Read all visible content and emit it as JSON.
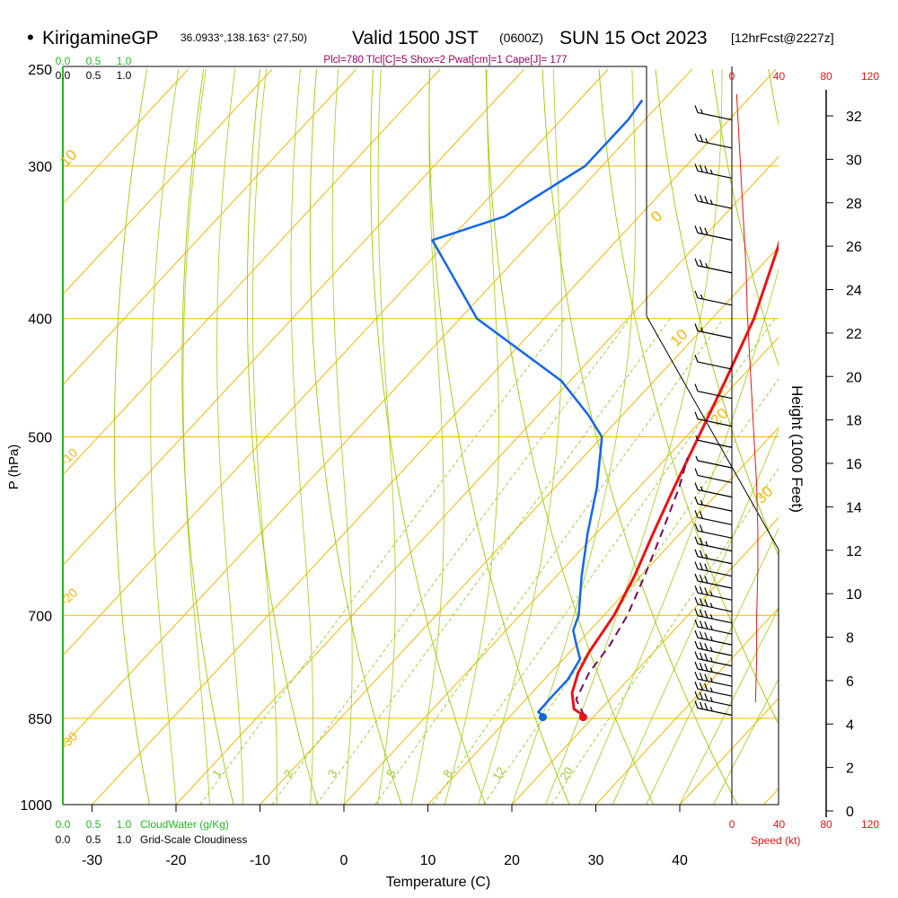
{
  "header": {
    "bullet": "•",
    "site": "KirigamineGP",
    "coords": "36.0933°,138.163° (27,50)",
    "valid": "Valid 1500 JST",
    "zulu": "(0600Z)",
    "date": "SUN 15 Oct 2023",
    "forecast": "[12hrFcst@2227z]"
  },
  "indices": "Plcl=780 Tlcl[C]=5 Shox=2 Pwat[cm]=1 Cape[J]= 177",
  "cloudwater_label": "CloudWater (g/Kg)",
  "cloudiness_label": "Grid-Scale Cloudiness",
  "speed_label": "Speed (kt)",
  "colors": {
    "temperature": "#ee1111",
    "dewpoint": "#1166ee",
    "parcel": "#7a0a5a",
    "isotherm": "#f5b800",
    "dry_adiabat": "#99cc00",
    "moist_adiabat": "#99cc00",
    "mixing_ratio": "#99cc33",
    "cloudwater": "#22bb22",
    "speed": "#ee1111",
    "indices": "#990066"
  },
  "chart_data": {
    "type": "line",
    "xlabel": "Temperature (C)",
    "ylabel": "P (hPa)",
    "y2label": "Height (1000 Feet)",
    "x_ticks": [
      -30,
      -20,
      -10,
      0,
      10,
      20,
      30,
      40
    ],
    "p_ticks": [
      250,
      300,
      400,
      500,
      700,
      850,
      1000
    ],
    "height_ticks": [
      0,
      2,
      4,
      6,
      8,
      10,
      12,
      14,
      16,
      18,
      20,
      22,
      24,
      26,
      28,
      30,
      32
    ],
    "speed_ticks": [
      0,
      40,
      80,
      120
    ],
    "cloud_ticks": [
      "0.0",
      "0.5",
      "1.0"
    ],
    "isotherm_labels": [
      {
        "text": "10",
        "t": -10
      },
      {
        "text": "0",
        "t": 0
      },
      {
        "text": "10",
        "t": 10
      },
      {
        "text": "20",
        "t": 20
      },
      {
        "text": "30",
        "t": 30
      }
    ],
    "mixing_ratio_labels": [
      "1",
      "2",
      "3",
      "5",
      "8",
      "12",
      "20"
    ],
    "left_axis_isotherm_labels": [
      "-10",
      "-20",
      "-30"
    ],
    "series": [
      {
        "name": "Temperature",
        "points": [
          {
            "p": 846,
            "t": 18.8
          },
          {
            "p": 835,
            "t": 16.8
          },
          {
            "p": 810,
            "t": 14.8
          },
          {
            "p": 780,
            "t": 13.3
          },
          {
            "p": 750,
            "t": 12.3
          },
          {
            "p": 700,
            "t": 11.2
          },
          {
            "p": 650,
            "t": 9.3
          },
          {
            "p": 600,
            "t": 6.8
          },
          {
            "p": 550,
            "t": 4.2
          },
          {
            "p": 500,
            "t": 1.5
          },
          {
            "p": 450,
            "t": -1.5
          },
          {
            "p": 400,
            "t": -5.0
          },
          {
            "p": 350,
            "t": -10.0
          },
          {
            "p": 300,
            "t": -16.5
          },
          {
            "p": 265,
            "t": -21.5
          }
        ]
      },
      {
        "name": "Dewpoint",
        "points": [
          {
            "p": 846,
            "t": 14.0
          },
          {
            "p": 840,
            "t": 12.9
          },
          {
            "p": 820,
            "t": 12.8
          },
          {
            "p": 790,
            "t": 12.8
          },
          {
            "p": 760,
            "t": 12.0
          },
          {
            "p": 740,
            "t": 10.0
          },
          {
            "p": 720,
            "t": 8.0
          },
          {
            "p": 700,
            "t": 7.0
          },
          {
            "p": 650,
            "t": 3.0
          },
          {
            "p": 600,
            "t": -1.0
          },
          {
            "p": 550,
            "t": -5.0
          },
          {
            "p": 500,
            "t": -10.0
          },
          {
            "p": 480,
            "t": -14.0
          },
          {
            "p": 450,
            "t": -21.0
          },
          {
            "p": 400,
            "t": -38.0
          },
          {
            "p": 345,
            "t": -52.0
          },
          {
            "p": 330,
            "t": -46.0
          },
          {
            "p": 300,
            "t": -42.0
          },
          {
            "p": 275,
            "t": -42.0
          },
          {
            "p": 265,
            "t": -42.5
          }
        ]
      },
      {
        "name": "Parcel",
        "points": [
          {
            "p": 846,
            "t": 18.8
          },
          {
            "p": 820,
            "t": 16.0
          },
          {
            "p": 780,
            "t": 14.6
          },
          {
            "p": 740,
            "t": 14.0
          },
          {
            "p": 700,
            "t": 12.8
          },
          {
            "p": 650,
            "t": 10.5
          },
          {
            "p": 600,
            "t": 7.8
          },
          {
            "p": 550,
            "t": 4.8
          },
          {
            "p": 520,
            "t": 2.5
          }
        ]
      }
    ],
    "surface_markers": [
      {
        "name": "Temperature",
        "p": 848,
        "t": 18.8
      },
      {
        "name": "Dewpoint",
        "p": 848,
        "t": 14.0
      }
    ],
    "height_profile_ft": [
      33,
      31,
      29,
      27,
      25,
      23,
      21,
      19,
      17,
      15,
      13,
      11,
      9,
      7,
      5
    ],
    "speed_profile_kt": [
      4,
      6,
      8,
      10,
      12,
      13,
      15,
      17,
      19,
      21,
      22,
      22,
      21,
      21,
      20
    ],
    "wind_barbs": [
      {
        "p": 275,
        "kt": 15
      },
      {
        "p": 290,
        "kt": 25
      },
      {
        "p": 307,
        "kt": 35
      },
      {
        "p": 325,
        "kt": 35
      },
      {
        "p": 345,
        "kt": 30
      },
      {
        "p": 367,
        "kt": 25
      },
      {
        "p": 390,
        "kt": 15
      },
      {
        "p": 415,
        "kt": 15
      },
      {
        "p": 440,
        "kt": 10
      },
      {
        "p": 465,
        "kt": 10
      },
      {
        "p": 490,
        "kt": 10
      },
      {
        "p": 510,
        "kt": 5
      },
      {
        "p": 530,
        "kt": 5
      },
      {
        "p": 545,
        "kt": 10
      },
      {
        "p": 560,
        "kt": 15
      },
      {
        "p": 575,
        "kt": 15
      },
      {
        "p": 590,
        "kt": 20
      },
      {
        "p": 605,
        "kt": 20
      },
      {
        "p": 620,
        "kt": 25
      },
      {
        "p": 635,
        "kt": 25
      },
      {
        "p": 650,
        "kt": 30
      },
      {
        "p": 665,
        "kt": 30
      },
      {
        "p": 680,
        "kt": 35
      },
      {
        "p": 695,
        "kt": 35
      },
      {
        "p": 710,
        "kt": 35
      },
      {
        "p": 725,
        "kt": 35
      },
      {
        "p": 740,
        "kt": 35
      },
      {
        "p": 755,
        "kt": 35
      },
      {
        "p": 770,
        "kt": 35
      },
      {
        "p": 785,
        "kt": 35
      },
      {
        "p": 800,
        "kt": 35
      },
      {
        "p": 815,
        "kt": 35
      },
      {
        "p": 830,
        "kt": 35
      },
      {
        "p": 845,
        "kt": 35
      }
    ]
  }
}
